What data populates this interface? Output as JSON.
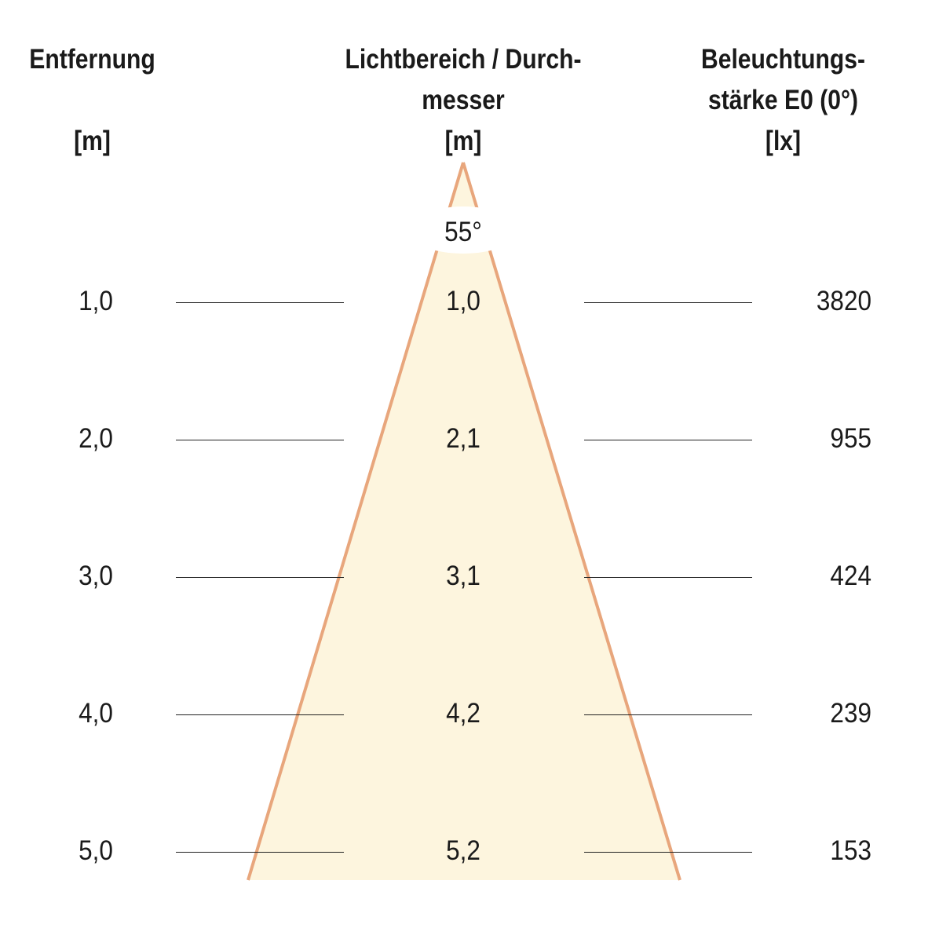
{
  "headers": {
    "distance": [
      "Entfernung",
      "",
      "[m]"
    ],
    "diameter": [
      "Lichtbereich / Durch-",
      "messer",
      "[m]"
    ],
    "illuminance": [
      "Beleuchtungs-",
      "stärke E0 (0°)",
      "[lx]"
    ]
  },
  "beam_angle": "55°",
  "rows": [
    {
      "distance": "1,0",
      "diameter": "1,0",
      "illuminance": "3820"
    },
    {
      "distance": "2,0",
      "diameter": "2,1",
      "illuminance": "955"
    },
    {
      "distance": "3,0",
      "diameter": "3,1",
      "illuminance": "424"
    },
    {
      "distance": "4,0",
      "diameter": "4,2",
      "illuminance": "239"
    },
    {
      "distance": "5,0",
      "diameter": "5,2",
      "illuminance": "153"
    }
  ],
  "colors": {
    "cone_fill": "#fdf5de",
    "cone_stroke": "#e8a67c"
  }
}
